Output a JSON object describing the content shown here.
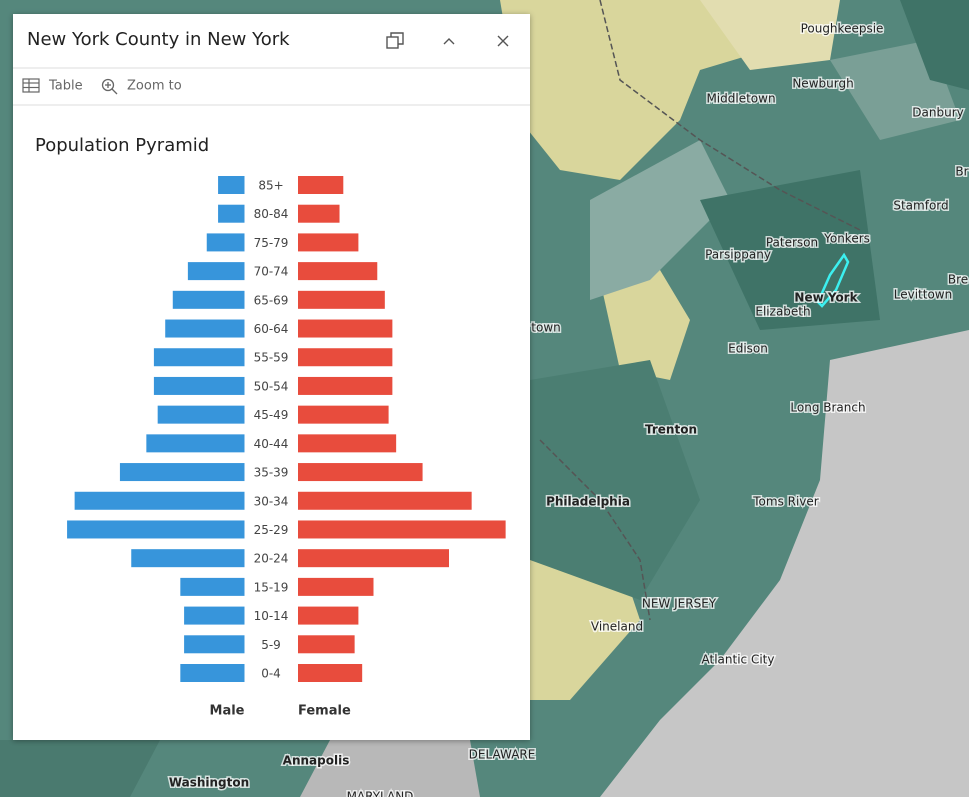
{
  "popup": {
    "title": "New York County in New York",
    "toolbar": [
      "Table",
      "Zoom to"
    ]
  },
  "chart_data": {
    "type": "pyramid",
    "title": "Population Pyramid",
    "categories": [
      "85+",
      "80-84",
      "75-79",
      "70-74",
      "65-69",
      "60-64",
      "55-59",
      "50-54",
      "45-49",
      "40-44",
      "35-39",
      "30-34",
      "25-29",
      "20-24",
      "15-19",
      "10-14",
      "5-9",
      "0-4"
    ],
    "series": [
      {
        "name": "Male",
        "color": "#3795db",
        "values": [
          0.7,
          0.7,
          1.0,
          1.5,
          1.9,
          2.1,
          2.4,
          2.4,
          2.3,
          2.6,
          3.3,
          4.5,
          4.7,
          3.0,
          1.7,
          1.6,
          1.6,
          1.7
        ]
      },
      {
        "name": "Female",
        "color": "#e84c3d",
        "values": [
          1.2,
          1.1,
          1.6,
          2.1,
          2.3,
          2.5,
          2.5,
          2.5,
          2.4,
          2.6,
          3.3,
          4.6,
          5.5,
          4.0,
          2.0,
          1.6,
          1.5,
          1.7
        ]
      }
    ],
    "xlim": [
      0,
      8
    ]
  },
  "map_labels": [
    "Poughkeepsie",
    "Newburgh",
    "Middletown",
    "Danbury",
    "Br",
    "Stamford",
    "Paterson",
    "Yonkers",
    "Parsippany",
    "New York",
    "Bre",
    "Levittown",
    "Elizabeth",
    "town",
    "Edison",
    "Long Branch",
    "Trenton",
    "Philadelphia",
    "Toms River",
    "NEW JERSEY",
    "Vineland",
    "Atlantic City",
    "Annapolis",
    "Washington",
    "DELAWARE",
    "MARYLAND"
  ]
}
